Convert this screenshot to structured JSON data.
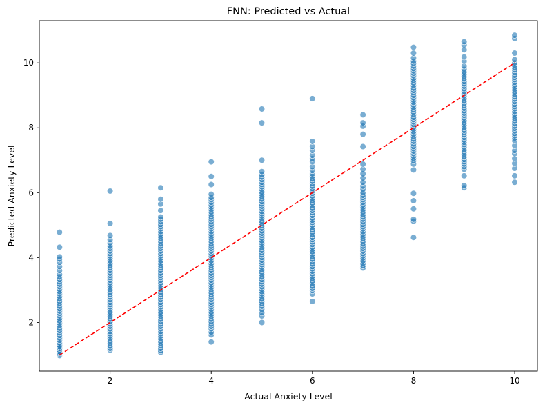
{
  "chart_data": {
    "type": "scatter",
    "title": "FNN: Predicted vs Actual",
    "xlabel": "Actual Anxiety Level",
    "ylabel": "Predicted Anxiety Level",
    "xlim": [
      0.6,
      10.45
    ],
    "ylim": [
      0.5,
      11.3
    ],
    "xticks": [
      2,
      4,
      6,
      8,
      10
    ],
    "yticks": [
      2,
      4,
      6,
      8,
      10
    ],
    "grid": false,
    "point_color": "#1f77b4",
    "reference_line": {
      "x": [
        1,
        10
      ],
      "y": [
        1,
        10
      ],
      "color": "#ff0000",
      "style": "dashed"
    },
    "series": [
      {
        "x": 1,
        "y": [
          0.98,
          1.03,
          1.06,
          1.1,
          1.15,
          1.2,
          1.25,
          1.3,
          1.37,
          1.45,
          1.52,
          1.6,
          1.68,
          1.75,
          1.82,
          1.9,
          1.98,
          2.05,
          2.12,
          2.2,
          2.28,
          2.35,
          2.42,
          2.5,
          2.58,
          2.65,
          2.72,
          2.8,
          2.88,
          2.95,
          3.02,
          3.1,
          3.18,
          3.25,
          3.32,
          3.4,
          3.48,
          3.6,
          3.72,
          3.85,
          3.95,
          4.02,
          4.32,
          4.78
        ]
      },
      {
        "x": 2,
        "y": [
          1.15,
          1.2,
          1.27,
          1.35,
          1.42,
          1.5,
          1.58,
          1.65,
          1.72,
          1.8,
          1.88,
          1.95,
          2.02,
          2.1,
          2.18,
          2.25,
          2.32,
          2.4,
          2.48,
          2.55,
          2.62,
          2.7,
          2.78,
          2.85,
          2.92,
          3.0,
          3.08,
          3.15,
          3.22,
          3.3,
          3.38,
          3.45,
          3.52,
          3.6,
          3.68,
          3.75,
          3.82,
          3.9,
          3.98,
          4.05,
          4.12,
          4.2,
          4.28,
          4.35,
          4.45,
          4.55,
          4.68,
          5.05,
          6.05
        ]
      },
      {
        "x": 3,
        "y": [
          1.08,
          1.13,
          1.2,
          1.28,
          1.35,
          1.42,
          1.5,
          1.58,
          1.65,
          1.72,
          1.8,
          1.88,
          1.95,
          2.02,
          2.1,
          2.18,
          2.25,
          2.32,
          2.4,
          2.48,
          2.55,
          2.62,
          2.7,
          2.78,
          2.85,
          2.92,
          3.0,
          3.08,
          3.15,
          3.22,
          3.3,
          3.38,
          3.45,
          3.52,
          3.6,
          3.68,
          3.75,
          3.82,
          3.9,
          3.98,
          4.05,
          4.12,
          4.2,
          4.28,
          4.35,
          4.42,
          4.5,
          4.58,
          4.65,
          4.72,
          4.8,
          4.88,
          4.95,
          5.02,
          5.1,
          5.18,
          5.25,
          5.45,
          5.65,
          5.8,
          6.15
        ]
      },
      {
        "x": 4,
        "y": [
          1.4,
          1.62,
          1.7,
          1.8,
          1.88,
          1.95,
          2.02,
          2.1,
          2.18,
          2.25,
          2.32,
          2.4,
          2.48,
          2.55,
          2.62,
          2.7,
          2.78,
          2.85,
          2.92,
          3.0,
          3.08,
          3.15,
          3.22,
          3.3,
          3.38,
          3.45,
          3.52,
          3.6,
          3.68,
          3.75,
          3.82,
          3.9,
          3.98,
          4.05,
          4.12,
          4.2,
          4.28,
          4.35,
          4.42,
          4.5,
          4.58,
          4.65,
          4.72,
          4.8,
          4.88,
          4.95,
          5.02,
          5.1,
          5.18,
          5.25,
          5.32,
          5.4,
          5.48,
          5.55,
          5.62,
          5.7,
          5.78,
          5.85,
          5.95,
          6.25,
          6.5,
          6.95
        ]
      },
      {
        "x": 5,
        "y": [
          2.0,
          2.2,
          2.3,
          2.4,
          2.5,
          2.58,
          2.65,
          2.72,
          2.8,
          2.88,
          2.95,
          3.02,
          3.1,
          3.18,
          3.25,
          3.32,
          3.4,
          3.48,
          3.55,
          3.62,
          3.7,
          3.78,
          3.85,
          3.92,
          4.0,
          4.08,
          4.15,
          4.22,
          4.3,
          4.38,
          4.45,
          4.52,
          4.6,
          4.68,
          4.75,
          4.82,
          4.9,
          4.98,
          5.05,
          5.12,
          5.2,
          5.28,
          5.35,
          5.42,
          5.5,
          5.58,
          5.65,
          5.72,
          5.8,
          5.88,
          5.95,
          6.02,
          6.1,
          6.18,
          6.25,
          6.32,
          6.4,
          6.48,
          6.55,
          6.65,
          7.0,
          8.15,
          8.58
        ]
      },
      {
        "x": 6,
        "y": [
          2.65,
          2.88,
          2.98,
          3.05,
          3.12,
          3.2,
          3.28,
          3.35,
          3.42,
          3.5,
          3.58,
          3.65,
          3.72,
          3.8,
          3.88,
          3.95,
          4.02,
          4.1,
          4.18,
          4.25,
          4.32,
          4.4,
          4.48,
          4.55,
          4.62,
          4.7,
          4.78,
          4.85,
          4.92,
          5.0,
          5.08,
          5.15,
          5.22,
          5.3,
          5.38,
          5.45,
          5.52,
          5.6,
          5.68,
          5.75,
          5.82,
          5.9,
          5.98,
          6.05,
          6.12,
          6.2,
          6.28,
          6.35,
          6.42,
          6.5,
          6.58,
          6.68,
          6.8,
          6.95,
          7.05,
          7.15,
          7.3,
          7.42,
          7.58,
          8.9
        ]
      },
      {
        "x": 7,
        "y": [
          3.68,
          3.75,
          3.82,
          3.9,
          3.98,
          4.05,
          4.12,
          4.2,
          4.28,
          4.35,
          4.42,
          4.5,
          4.58,
          4.65,
          4.72,
          4.8,
          4.88,
          4.95,
          5.02,
          5.1,
          5.18,
          5.25,
          5.32,
          5.4,
          5.48,
          5.55,
          5.62,
          5.7,
          5.78,
          5.85,
          5.92,
          6.0,
          6.1,
          6.2,
          6.32,
          6.45,
          6.58,
          6.72,
          6.88,
          7.42,
          7.8,
          8.05,
          8.15,
          8.4
        ]
      },
      {
        "x": 8,
        "y": [
          4.62,
          5.12,
          5.18,
          5.5,
          5.75,
          5.98,
          6.7,
          6.88,
          6.98,
          7.05,
          7.12,
          7.2,
          7.28,
          7.35,
          7.42,
          7.5,
          7.58,
          7.65,
          7.72,
          7.8,
          7.88,
          7.95,
          8.02,
          8.1,
          8.18,
          8.25,
          8.32,
          8.4,
          8.48,
          8.55,
          8.62,
          8.7,
          8.78,
          8.85,
          8.92,
          9.0,
          9.08,
          9.15,
          9.22,
          9.3,
          9.38,
          9.45,
          9.52,
          9.6,
          9.68,
          9.75,
          9.82,
          9.9,
          9.98,
          10.05,
          10.15,
          10.3,
          10.48
        ]
      },
      {
        "x": 9,
        "y": [
          6.15,
          6.22,
          6.52,
          6.72,
          6.8,
          6.88,
          6.95,
          7.02,
          7.1,
          7.18,
          7.25,
          7.32,
          7.4,
          7.48,
          7.55,
          7.62,
          7.7,
          7.78,
          7.85,
          7.92,
          8.0,
          8.08,
          8.15,
          8.22,
          8.3,
          8.38,
          8.45,
          8.52,
          8.6,
          8.68,
          8.75,
          8.82,
          8.9,
          8.98,
          9.05,
          9.12,
          9.2,
          9.28,
          9.35,
          9.42,
          9.5,
          9.58,
          9.65,
          9.72,
          9.8,
          9.9,
          10.05,
          10.18,
          10.4,
          10.55,
          10.65
        ]
      },
      {
        "x": 10,
        "y": [
          6.32,
          6.52,
          6.75,
          6.9,
          7.05,
          7.2,
          7.3,
          7.45,
          7.6,
          7.68,
          7.75,
          7.82,
          7.9,
          7.98,
          8.05,
          8.12,
          8.2,
          8.28,
          8.35,
          8.42,
          8.5,
          8.58,
          8.65,
          8.72,
          8.8,
          8.88,
          8.95,
          9.02,
          9.1,
          9.18,
          9.25,
          9.32,
          9.4,
          9.48,
          9.55,
          9.62,
          9.7,
          9.78,
          9.85,
          9.92,
          10.0,
          10.1,
          10.3,
          10.75,
          10.85
        ]
      }
    ]
  }
}
